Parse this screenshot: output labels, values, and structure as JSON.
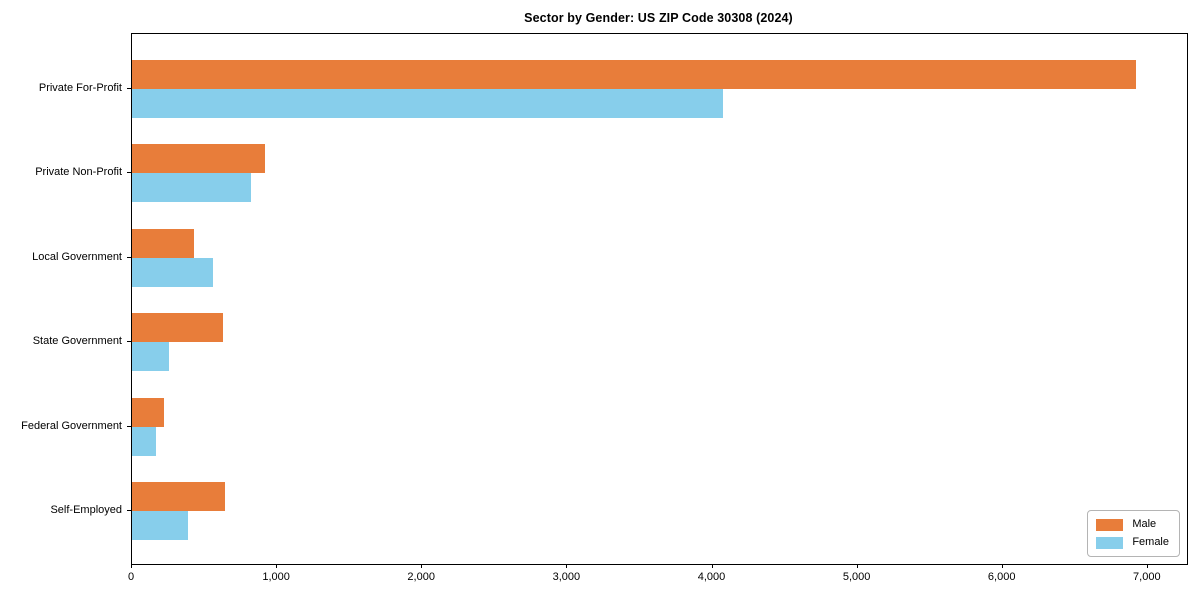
{
  "chart_data": {
    "type": "bar",
    "orientation": "horizontal",
    "title": "Sector by Gender: US ZIP Code 30308 (2024)",
    "categories": [
      "Private For-Profit",
      "Private Non-Profit",
      "Local Government",
      "State Government",
      "Federal Government",
      "Self-Employed"
    ],
    "series": [
      {
        "name": "Male",
        "color": "#e87d3a",
        "values": [
          6920,
          915,
          430,
          630,
          220,
          640
        ]
      },
      {
        "name": "Female",
        "color": "#87ceeb",
        "values": [
          4070,
          820,
          560,
          255,
          165,
          385
        ]
      }
    ],
    "xlabel": "",
    "ylabel": "",
    "xlim": [
      0,
      7270
    ],
    "xticks": [
      0,
      1000,
      2000,
      3000,
      4000,
      5000,
      6000,
      7000
    ],
    "xtick_labels": [
      "0",
      "1,000",
      "2,000",
      "3,000",
      "4,000",
      "5,000",
      "6,000",
      "7,000"
    ],
    "grid": false,
    "legend_position": "lower right"
  }
}
